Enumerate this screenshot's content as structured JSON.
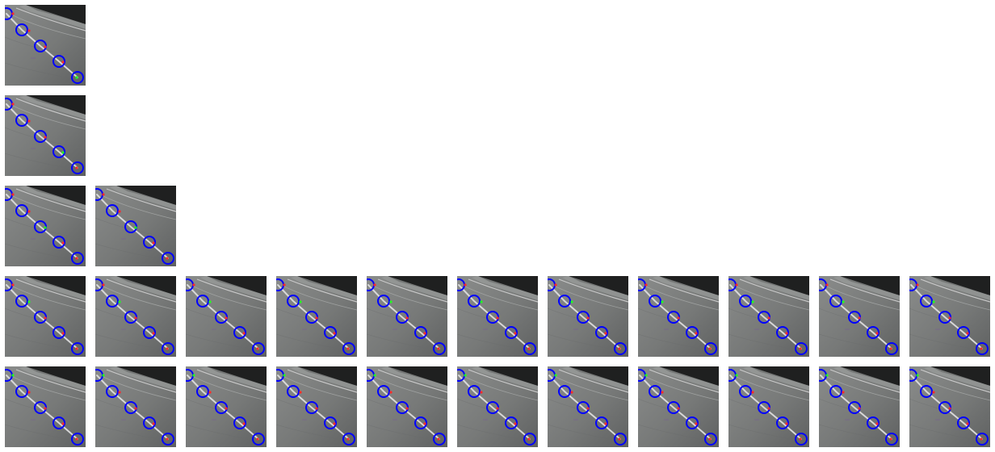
{
  "image_type": "grid of road-scene thumbnails with keypoint annotations",
  "colors": {
    "road_light": "#8a8c8b",
    "road_mid": "#777978",
    "road_dark": "#5f6161",
    "barrier_dark": "#1f2020",
    "lane_line": "#d7d7d7",
    "keypoint_ring": "#0000ff",
    "keypoint_red": "#ff2a2a",
    "keypoint_green": "#20ff20"
  },
  "keypoints_per_thumb": 5,
  "rows": [
    {
      "thumbs": [
        {
          "highlighted_keypoint": 5
        }
      ]
    },
    {
      "thumbs": [
        {
          "highlighted_keypoint": 4
        }
      ]
    },
    {
      "thumbs": [
        {
          "highlighted_keypoint": 3
        },
        {
          "highlighted_keypoint": 3
        }
      ]
    },
    {
      "thumbs": [
        {
          "highlighted_keypoint": 2
        },
        {
          "highlighted_keypoint": 2
        },
        {
          "highlighted_keypoint": 2
        },
        {
          "highlighted_keypoint": 2
        },
        {
          "highlighted_keypoint": 2
        },
        {
          "highlighted_keypoint": 2
        },
        {
          "highlighted_keypoint": 2
        },
        {
          "highlighted_keypoint": 2
        },
        {
          "highlighted_keypoint": 2
        },
        {
          "highlighted_keypoint": 2
        },
        {
          "highlighted_keypoint": 2
        }
      ]
    },
    {
      "thumbs": [
        {
          "highlighted_keypoint": 1
        },
        {
          "highlighted_keypoint": 1
        },
        {
          "highlighted_keypoint": 1
        },
        {
          "highlighted_keypoint": 1
        },
        {
          "highlighted_keypoint": 1
        },
        {
          "highlighted_keypoint": 1
        },
        {
          "highlighted_keypoint": 1
        },
        {
          "highlighted_keypoint": 1
        },
        {
          "highlighted_keypoint": 1
        },
        {
          "highlighted_keypoint": 1
        },
        {
          "highlighted_keypoint": 1
        }
      ]
    }
  ]
}
